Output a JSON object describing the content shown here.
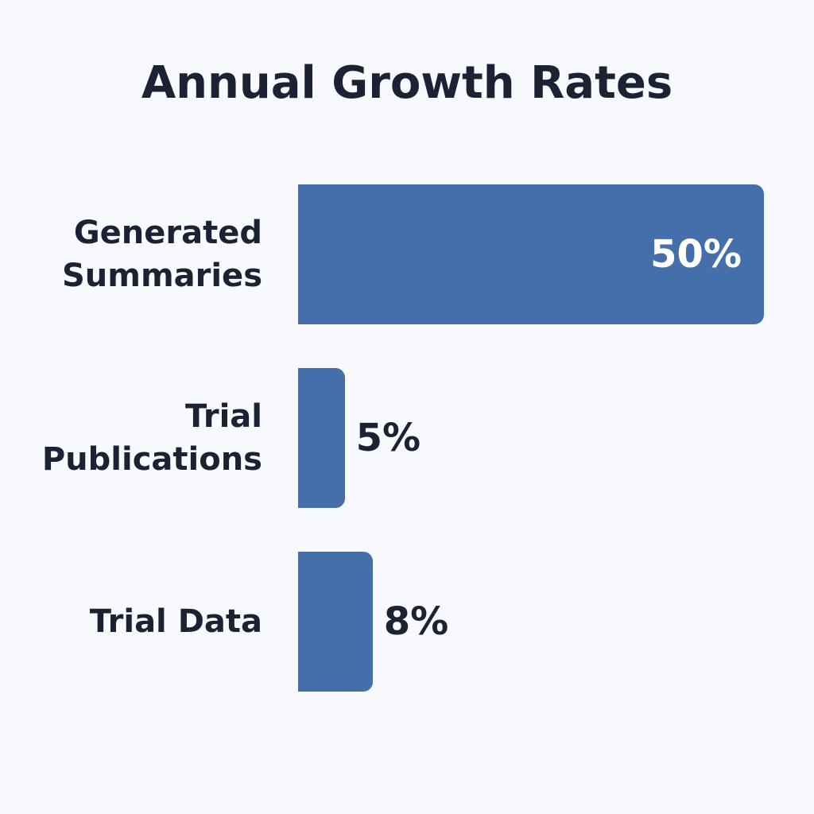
{
  "chart_data": {
    "type": "bar",
    "orientation": "horizontal",
    "title": "Annual Growth Rates",
    "categories": [
      "Generated Summaries",
      "Trial Publications",
      "Trial Data"
    ],
    "values": [
      50,
      5,
      8
    ],
    "value_labels": [
      "50%",
      "5%",
      "8%"
    ],
    "color": "#456fab"
  }
}
